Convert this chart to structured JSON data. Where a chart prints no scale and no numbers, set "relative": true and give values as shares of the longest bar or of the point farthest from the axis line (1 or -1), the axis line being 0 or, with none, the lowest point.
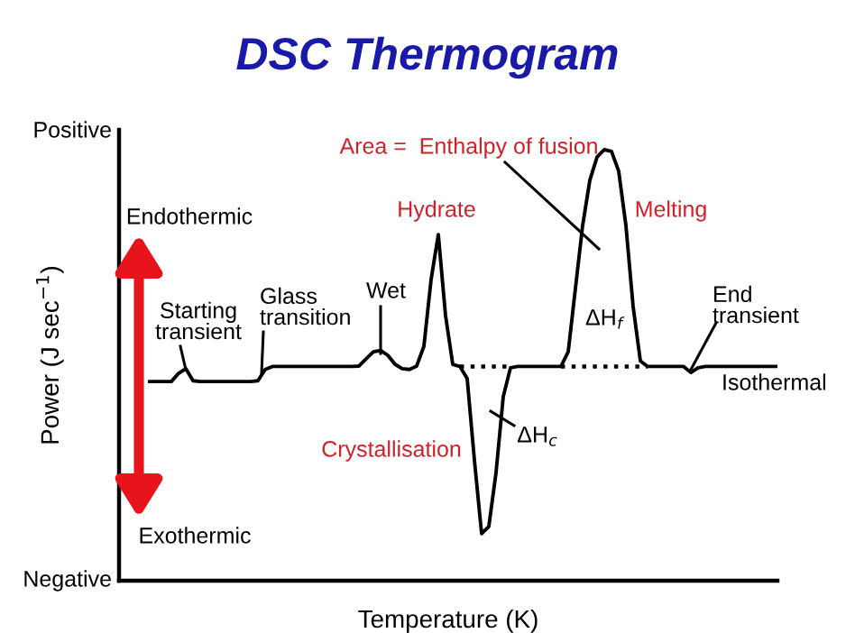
{
  "chart_data": {
    "type": "line",
    "title": "DSC Thermogram",
    "xlabel": "Temperature (K)",
    "ylabel": "Power (J sec$^{−1}$)",
    "relative": true,
    "categories": [
      null,
      null,
      null,
      null,
      null,
      null,
      null,
      null,
      null,
      null,
      null,
      null,
      null,
      null,
      null,
      null,
      null,
      null,
      null,
      null,
      null,
      null,
      null,
      null,
      null,
      null,
      null,
      null,
      null,
      null,
      null,
      null,
      null,
      null,
      null,
      null,
      null,
      null,
      null,
      null,
      null,
      null,
      null,
      null,
      null,
      null,
      null,
      null,
      null,
      null,
      null,
      null,
      null,
      null,
      null,
      null,
      null,
      null,
      null,
      null,
      null,
      null,
      null,
      null,
      null,
      null,
      null,
      null,
      null,
      null,
      null,
      null,
      null,
      null,
      null,
      null,
      null,
      null,
      null,
      null,
      null,
      null,
      null,
      null,
      null,
      null,
      null,
      null
    ],
    "series": [
      {
        "color": "#000000",
        "line_style": "solid",
        "values": [
          0.462,
          0.462,
          0.462,
          0.462,
          0.481,
          0.492,
          0.464,
          0.462,
          0.462,
          0.462,
          0.462,
          0.462,
          0.462,
          0.462,
          0.462,
          0.464,
          0.49,
          0.497,
          0.497,
          0.497,
          0.497,
          0.497,
          0.497,
          0.497,
          0.497,
          0.497,
          0.497,
          0.497,
          0.497,
          0.498,
          0.515,
          0.531,
          0.534,
          0.523,
          0.502,
          0.492,
          0.49,
          0.498,
          0.544,
          0.699,
          0.803,
          0.615,
          0.502,
          0.497,
          0.469,
          0.28,
          0.109,
          0.126,
          0.251,
          0.427,
          0.494,
          0.497,
          0.497,
          0.497,
          0.497,
          0.497,
          0.497,
          0.497,
          0.531,
          0.678,
          0.824,
          0.929,
          0.983,
          1.0,
          0.996,
          0.95,
          0.824,
          0.636,
          0.51,
          0.497,
          0.497,
          0.497,
          0.497,
          0.497,
          0.497,
          0.483,
          0.494,
          0.497,
          0.497,
          0.497,
          0.497,
          0.497,
          0.497,
          0.497,
          0.497,
          0.497,
          0.497,
          0.497
        ]
      },
      {
        "color": "#000000",
        "line_style": "dotted",
        "values": [
          null,
          null,
          null,
          null,
          null,
          null,
          null,
          null,
          null,
          null,
          null,
          null,
          null,
          null,
          null,
          null,
          null,
          null,
          null,
          null,
          null,
          null,
          null,
          null,
          null,
          null,
          null,
          null,
          null,
          null,
          null,
          null,
          null,
          null,
          null,
          null,
          null,
          null,
          null,
          null,
          null,
          null,
          null,
          0.497,
          0.497,
          0.497,
          0.497,
          0.497,
          0.497,
          0.497,
          0.497,
          null,
          null,
          null,
          null,
          null,
          null,
          0.497,
          0.497,
          0.497,
          0.497,
          0.497,
          0.497,
          0.497,
          0.497,
          0.497,
          0.497,
          0.497,
          0.497,
          0.497,
          null,
          null,
          null,
          null,
          null,
          null,
          null,
          null,
          null,
          null,
          null,
          null,
          null,
          null,
          null,
          null,
          null,
          null
        ]
      }
    ],
    "annotations": [
      "Positive",
      "Negative",
      "Endothermic",
      "Exothermic",
      "Starting\ntransient",
      "Glass\ntransition",
      "Wet",
      "Hydrate",
      "Crystallisation",
      "ΔH$_{c}$",
      "Area =  Enthalpy of fusion",
      "Melting",
      "ΔH$_{f}$",
      "End\ntransient",
      "Isothermal"
    ]
  }
}
